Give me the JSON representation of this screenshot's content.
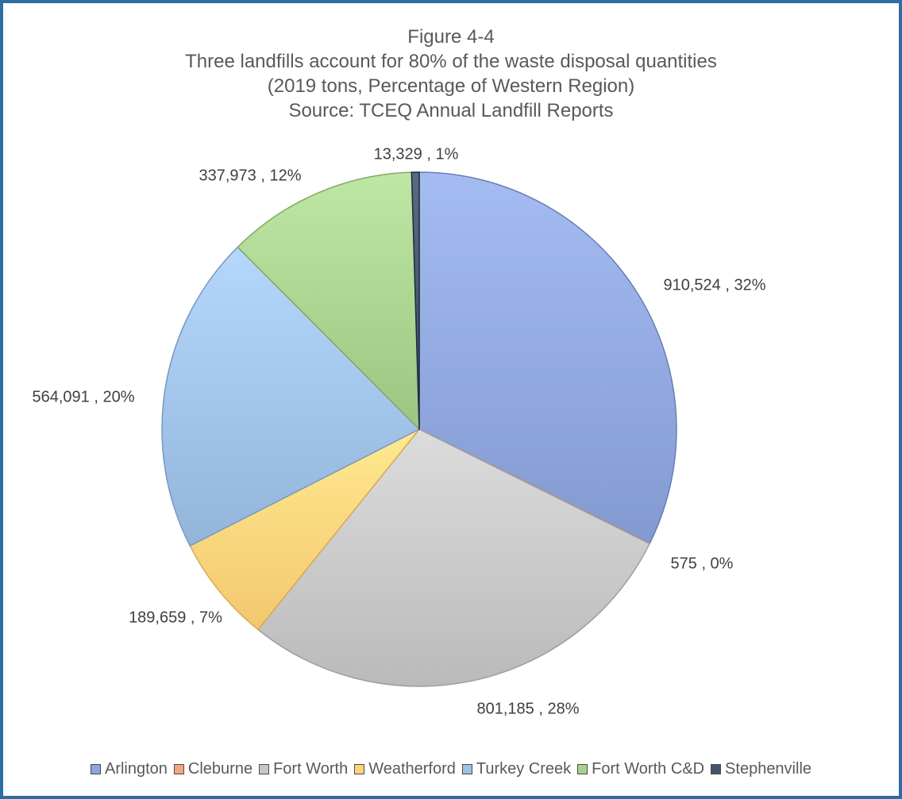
{
  "chart_data": {
    "type": "pie",
    "title": "Figure 4-4",
    "subtitle_lines": [
      "Three landfills account for 80% of the waste disposal quantities",
      "(2019 tons, Percentage of Western Region)",
      "Source:  TCEQ Annual Landfill Reports"
    ],
    "start_angle_deg": 0,
    "direction": "clockwise",
    "slices": [
      {
        "name": "Arlington",
        "value": 910524,
        "label": "910,524 , 32%",
        "color": "#8fa6dc"
      },
      {
        "name": "Cleburne",
        "value": 575,
        "label": "575 , 0%",
        "color": "#f4a582"
      },
      {
        "name": "Fort Worth",
        "value": 801185,
        "label": "801,185 , 28%",
        "color": "#c6c6c6"
      },
      {
        "name": "Weatherford",
        "value": 189659,
        "label": "189,659 , 7%",
        "color": "#ffd37a"
      },
      {
        "name": "Turkey Creek",
        "value": 564091,
        "label": "564,091 , 20%",
        "color": "#9fc1e6"
      },
      {
        "name": "Fort Worth C&D",
        "value": 337973,
        "label": "337,973 , 12%",
        "color": "#a9d18e"
      },
      {
        "name": "Stephenville",
        "value": 13329,
        "label": "13,329 , 1%",
        "color": "#44546a"
      }
    ],
    "legend_position": "bottom"
  }
}
